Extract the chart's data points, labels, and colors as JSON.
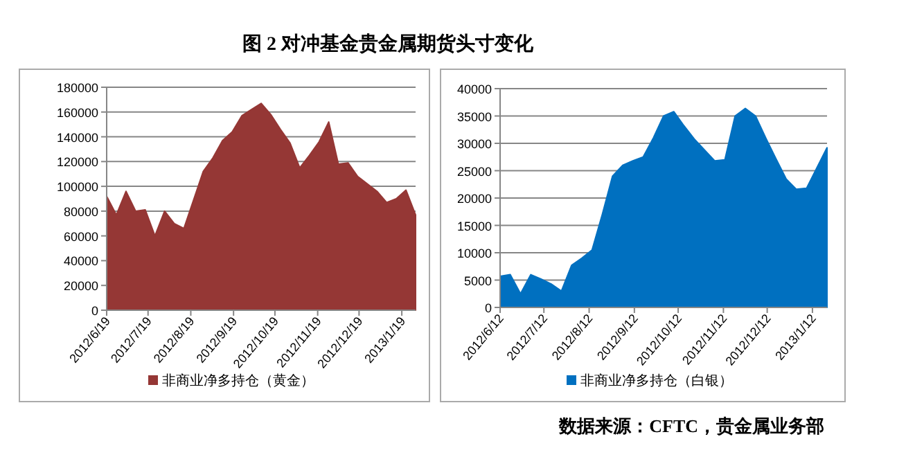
{
  "chart_data": [
    {
      "type": "area",
      "title": "图 2 对冲基金贵金属期货头寸变化",
      "x": [
        "2012-06-19",
        "2012-06-26",
        "2012-07-03",
        "2012-07-10",
        "2012-07-17",
        "2012-07-24",
        "2012-07-31",
        "2012-08-07",
        "2012-08-14",
        "2012-08-21",
        "2012-08-28",
        "2012-09-04",
        "2012-09-11",
        "2012-09-18",
        "2012-09-25",
        "2012-10-02",
        "2012-10-09",
        "2012-10-16",
        "2012-10-23",
        "2012-10-30",
        "2012-11-06",
        "2012-11-13",
        "2012-11-20",
        "2012-11-27",
        "2012-12-04",
        "2012-12-11",
        "2012-12-18",
        "2012-12-25",
        "2013-01-01",
        "2013-01-08",
        "2013-01-15",
        "2013-01-22",
        "2013-01-29"
      ],
      "series": [
        {
          "name": "非商业净多持仓（黄金）",
          "color": "#953735",
          "values": [
            92000,
            77000,
            96000,
            80000,
            81000,
            60000,
            80000,
            70000,
            66000,
            89000,
            112000,
            123000,
            137000,
            144000,
            157000,
            162000,
            167000,
            158000,
            146000,
            135000,
            115000,
            125000,
            136000,
            152000,
            118000,
            119000,
            108000,
            102000,
            96000,
            87000,
            90000,
            97000,
            77000
          ]
        }
      ],
      "xlim": [
        "2012-06-19",
        "2013-01-29"
      ],
      "xticks": [
        {
          "value": "2012-06-19",
          "label": "2012/6/19"
        },
        {
          "value": "2012-07-19",
          "label": "2012/7/19"
        },
        {
          "value": "2012-08-19",
          "label": "2012/8/19"
        },
        {
          "value": "2012-09-19",
          "label": "2012/9/19"
        },
        {
          "value": "2012-10-19",
          "label": "2012/10/19"
        },
        {
          "value": "2012-11-19",
          "label": "2012/11/19"
        },
        {
          "value": "2012-12-19",
          "label": "2012/12/19"
        },
        {
          "value": "2013-01-19",
          "label": "2013/1/19"
        }
      ],
      "ylim": [
        0,
        180000
      ],
      "yticks": [
        0,
        20000,
        40000,
        60000,
        80000,
        100000,
        120000,
        140000,
        160000,
        180000
      ],
      "grid": "y",
      "legend": "bottom"
    },
    {
      "type": "area",
      "annotations": [
        "数据来源：CFTC，贵金属业务部"
      ],
      "x": [
        "2012-06-12",
        "2012-06-19",
        "2012-06-26",
        "2012-07-03",
        "2012-07-10",
        "2012-07-17",
        "2012-07-24",
        "2012-07-31",
        "2012-08-07",
        "2012-08-14",
        "2012-08-21",
        "2012-08-28",
        "2012-09-04",
        "2012-09-11",
        "2012-09-18",
        "2012-09-25",
        "2012-10-02",
        "2012-10-09",
        "2012-10-16",
        "2012-10-23",
        "2012-10-30",
        "2012-11-06",
        "2012-11-13",
        "2012-11-20",
        "2012-11-27",
        "2012-12-04",
        "2012-12-11",
        "2012-12-18",
        "2012-12-25",
        "2013-01-01",
        "2013-01-08",
        "2013-01-15",
        "2013-01-22"
      ],
      "series": [
        {
          "name": "非商业净多持仓（白银）",
          "color": "#0070c0",
          "values": [
            5700,
            6000,
            2500,
            6000,
            5200,
            4300,
            3000,
            7700,
            9000,
            10500,
            17000,
            24000,
            26000,
            26800,
            27500,
            31000,
            35000,
            35800,
            33200,
            30800,
            28800,
            26800,
            27000,
            35000,
            36400,
            35000,
            31000,
            27200,
            23500,
            21600,
            21800,
            25500,
            29200
          ]
        }
      ],
      "xlim": [
        "2012-06-12",
        "2013-01-22"
      ],
      "xticks": [
        {
          "value": "2012-06-12",
          "label": "2012/6/12"
        },
        {
          "value": "2012-07-12",
          "label": "2012/7/12"
        },
        {
          "value": "2012-08-12",
          "label": "2012/8/12"
        },
        {
          "value": "2012-09-12",
          "label": "2012/9/12"
        },
        {
          "value": "2012-10-12",
          "label": "2012/10/12"
        },
        {
          "value": "2012-11-12",
          "label": "2012/11/12"
        },
        {
          "value": "2012-12-12",
          "label": "2012/12/12"
        },
        {
          "value": "2013-01-12",
          "label": "2013/1/12"
        }
      ],
      "ylim": [
        0,
        40000
      ],
      "yticks": [
        0,
        5000,
        10000,
        15000,
        20000,
        25000,
        30000,
        35000,
        40000
      ],
      "grid": "y",
      "legend": "bottom"
    }
  ]
}
